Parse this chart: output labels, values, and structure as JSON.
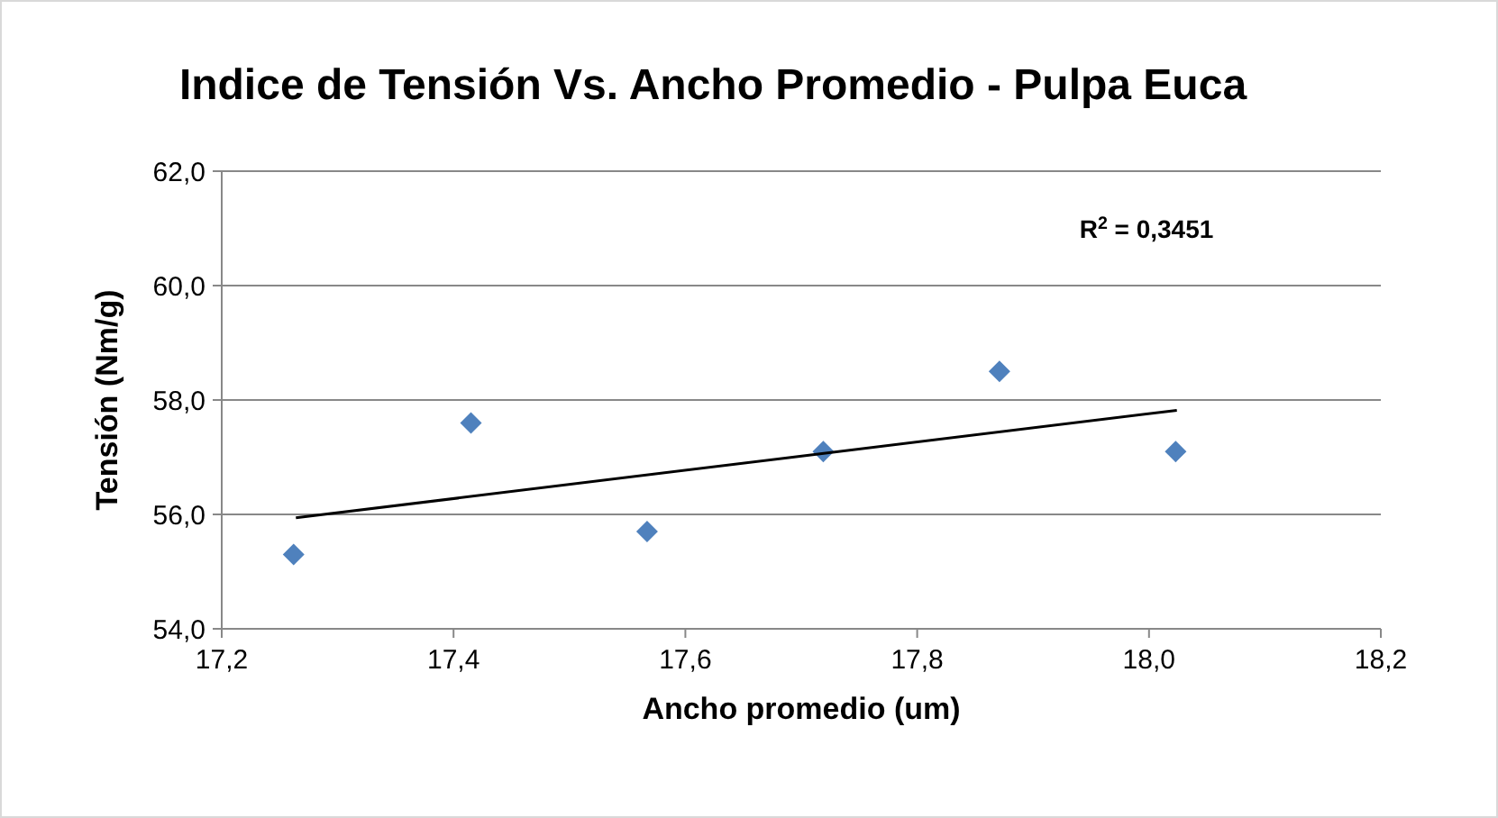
{
  "chart_data": {
    "type": "scatter",
    "title": "Indice de Tensión Vs. Ancho Promedio - Pulpa Euca",
    "xlabel": "Ancho promedio (um)",
    "ylabel": "Tensión (Nm/g)",
    "x": [
      17.262,
      17.415,
      17.567,
      17.719,
      17.871,
      18.023
    ],
    "series": [
      {
        "color": "#4f81bd",
        "values": [
          55.3,
          57.6,
          55.7,
          57.1,
          58.5,
          57.1
        ],
        "marker": "diamond"
      },
      {
        "type": "line",
        "color": "#000000",
        "x": [
          17.264,
          18.024
        ],
        "values": [
          55.94,
          57.82
        ],
        "marker": "none"
      }
    ],
    "annotations": [
      "R$^{2}$ = 0,3451"
    ],
    "xlim": [
      17.2,
      18.2
    ],
    "xticks": [
      {
        "value": 17.2,
        "label": "17,2"
      },
      {
        "value": 17.4,
        "label": "17,4"
      },
      {
        "value": 17.6,
        "label": "17,6"
      },
      {
        "value": 17.8,
        "label": "17,8"
      },
      {
        "value": 18.0,
        "label": "18,0"
      },
      {
        "value": 18.2,
        "label": "18,2"
      }
    ],
    "ylim": [
      54,
      62
    ],
    "yticks": [
      {
        "value": 54,
        "label": "54,0"
      },
      {
        "value": 56,
        "label": "56,0"
      },
      {
        "value": 58,
        "label": "58,0"
      },
      {
        "value": 60,
        "label": "60,0"
      },
      {
        "value": 62,
        "label": "62,0"
      }
    ],
    "grid": "y"
  }
}
